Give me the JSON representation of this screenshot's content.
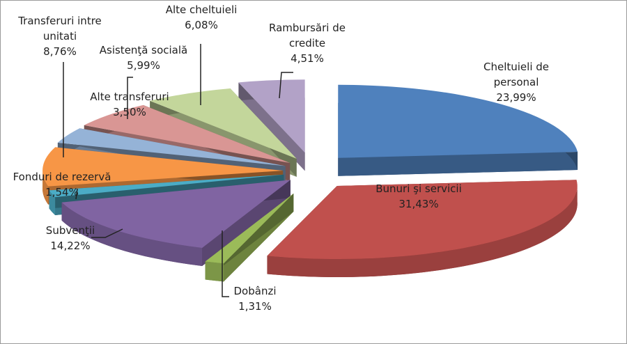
{
  "chart_data": {
    "type": "pie",
    "variant": "3d-exploded",
    "title": "",
    "legend": "none",
    "slices": [
      {
        "label": "Cheltuieli de personal",
        "value": 23.99,
        "display": "23,99%",
        "color": "#4f81bd"
      },
      {
        "label": "Bunuri şi servicii",
        "value": 31.43,
        "display": "31,43%",
        "color": "#c0504d"
      },
      {
        "label": "Dobânzi",
        "value": 1.31,
        "display": "1,31%",
        "color": "#9bbb59"
      },
      {
        "label": "Subvenţii",
        "value": 14.22,
        "display": "14,22%",
        "color": "#8064a2"
      },
      {
        "label": "Fonduri de rezervă",
        "value": 1.54,
        "display": "1,54%",
        "color": "#4bacc6"
      },
      {
        "label": "Transferuri intre unitati",
        "value": 8.76,
        "display": "8,76%",
        "color": "#f79646"
      },
      {
        "label": "Alte transferuri",
        "value": 3.5,
        "display": "3,50%",
        "color": "#95b3d7"
      },
      {
        "label": "Asistenţă socială",
        "value": 5.99,
        "display": "5,99%",
        "color": "#d99694"
      },
      {
        "label": "Alte cheltuieli",
        "value": 6.08,
        "display": "6,08%",
        "color": "#c3d69b"
      },
      {
        "label": "Rambursări de credite",
        "value": 4.51,
        "display": "4,51%",
        "color": "#b2a2c7"
      }
    ]
  }
}
